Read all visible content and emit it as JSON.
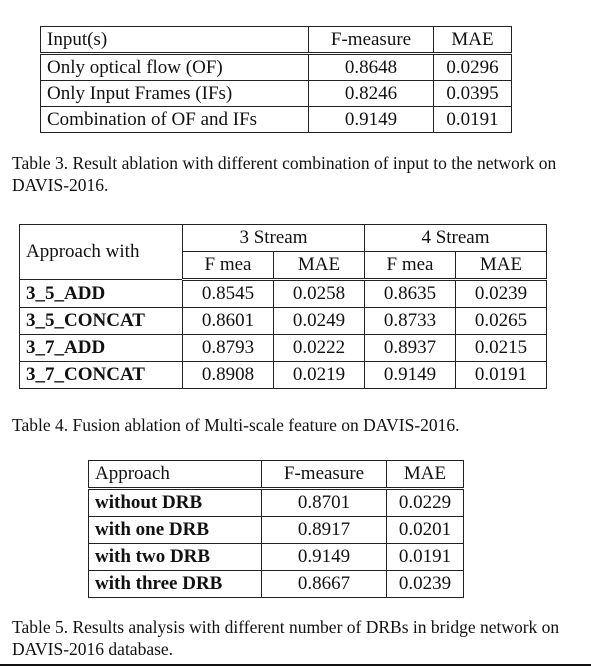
{
  "table3": {
    "headers": [
      "Input(s)",
      "F-measure",
      "MAE"
    ],
    "rows": [
      [
        "Only optical flow (OF)",
        "0.8648",
        "0.0296"
      ],
      [
        "Only Input Frames (IFs)",
        "0.8246",
        "0.0395"
      ],
      [
        "Combination of OF and IFs",
        "0.9149",
        "0.0191"
      ]
    ],
    "caption": "Table 3. Result ablation with different combination of input to the network on DAVIS-2016."
  },
  "table4": {
    "row_header": "Approach with",
    "groups": [
      "3 Stream",
      "4 Stream"
    ],
    "subheaders": [
      "F mea",
      "MAE",
      "F mea",
      "MAE"
    ],
    "rows": [
      [
        "3_5_ADD",
        "0.8545",
        "0.0258",
        "0.8635",
        "0.0239"
      ],
      [
        "3_5_CONCAT",
        "0.8601",
        "0.0249",
        "0.8733",
        "0.0265"
      ],
      [
        "3_7_ADD",
        "0.8793",
        "0.0222",
        "0.8937",
        "0.0215"
      ],
      [
        "3_7_CONCAT",
        "0.8908",
        "0.0219",
        "0.9149",
        "0.0191"
      ]
    ],
    "caption": "Table 4. Fusion ablation of Multi-scale feature on DAVIS-2016."
  },
  "table5": {
    "headers": [
      "Approach",
      "F-measure",
      "MAE"
    ],
    "rows": [
      [
        "without DRB",
        "0.8701",
        "0.0229"
      ],
      [
        "with one DRB",
        "0.8917",
        "0.0201"
      ],
      [
        "with two DRB",
        "0.9149",
        "0.0191"
      ],
      [
        "with three DRB",
        "0.8667",
        "0.0239"
      ]
    ],
    "caption": "Table 5. Results analysis with different number of DRBs in bridge network on DAVIS-2016 database."
  }
}
